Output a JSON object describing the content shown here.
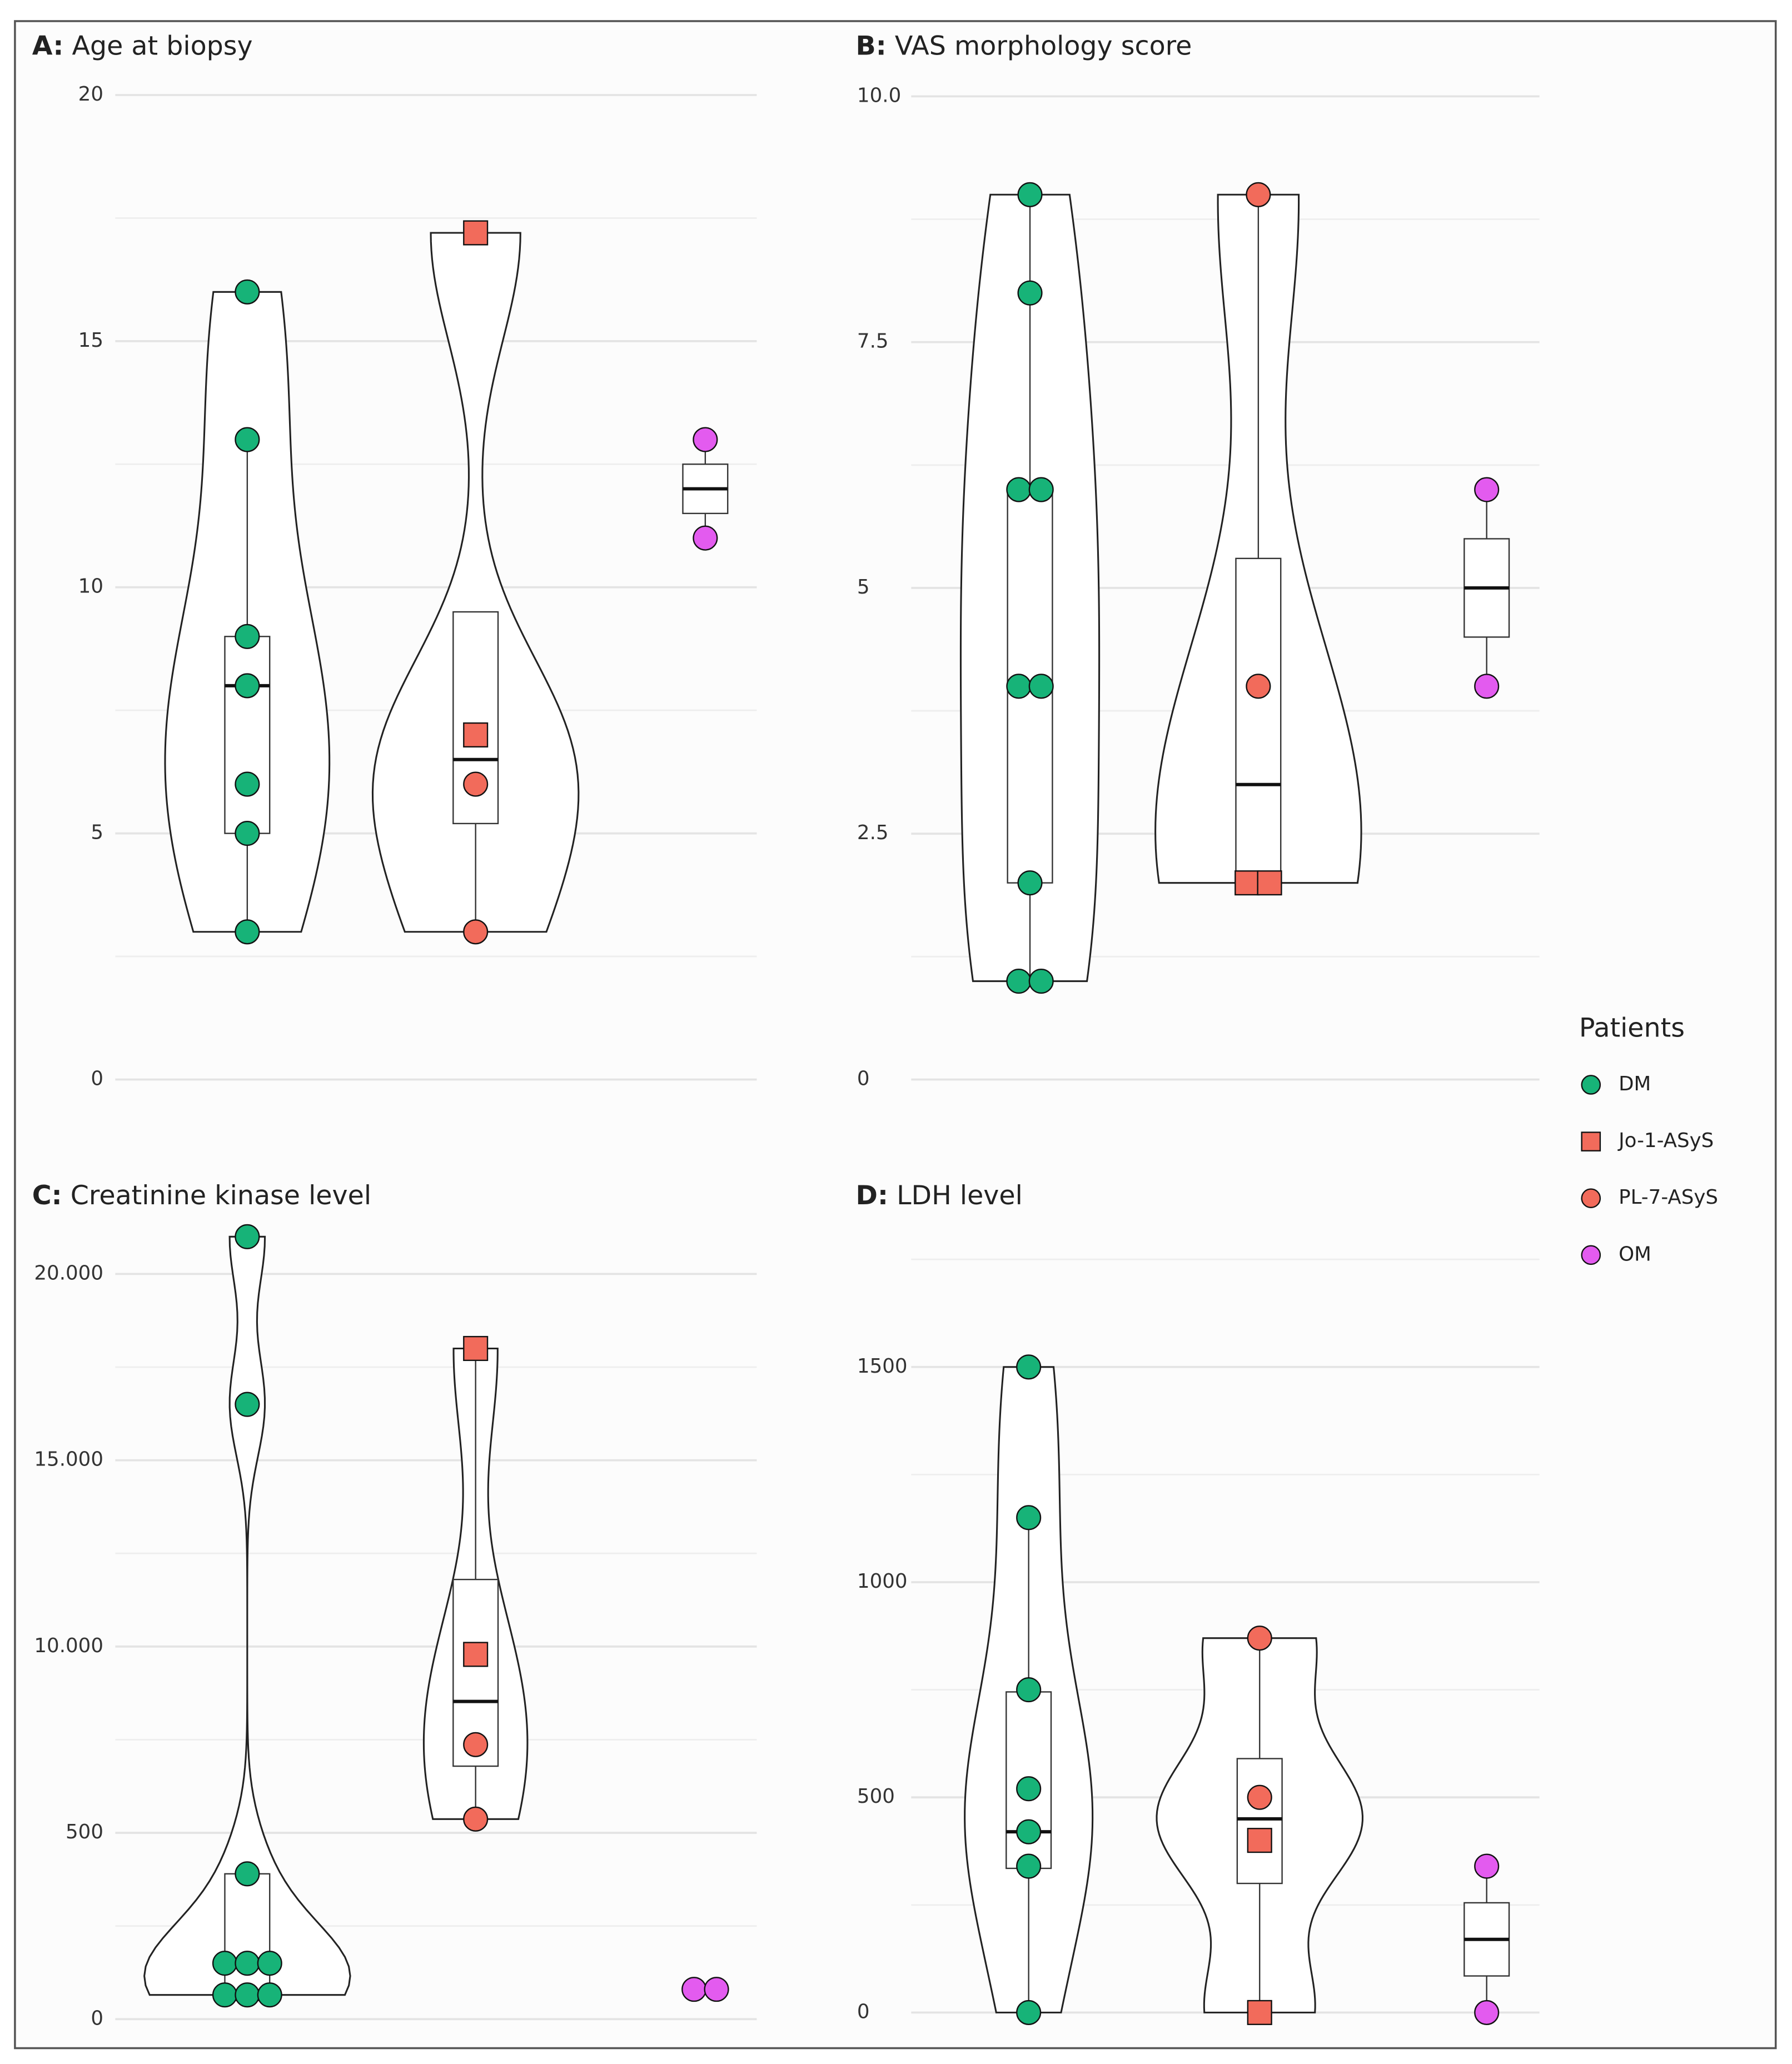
{
  "legend": {
    "title": "Patients",
    "entries": [
      {
        "name": "DM",
        "color": "#17b378",
        "shape": "circle"
      },
      {
        "name": "Jo-1-ASyS",
        "color": "#f26b5b",
        "shape": "square"
      },
      {
        "name": "PL-7-ASyS",
        "color": "#f26b5b",
        "shape": "circle"
      },
      {
        "name": "OM",
        "color": "#e35bef",
        "shape": "circle"
      }
    ]
  },
  "chart_data": [
    {
      "type": "violin",
      "label": "A:",
      "title": "Age at biopsy",
      "ylim": [
        0,
        20
      ],
      "yticks": [
        0,
        5,
        10,
        15,
        20
      ],
      "grid": true,
      "series": [
        {
          "values": [
            16,
            13,
            9,
            8,
            6,
            5,
            3
          ]
        },
        {
          "values": [
            17.2,
            7
          ]
        },
        {
          "values": [
            6,
            3
          ]
        },
        {
          "values": [
            13,
            11
          ]
        }
      ],
      "boxes": [
        {
          "whisker_low": 3,
          "q1": 5,
          "median": 8,
          "q3": 9,
          "whisker_high": 13
        },
        {
          "whisker_low": 3,
          "q1": 5.2,
          "median": 6.5,
          "q3": 9.5,
          "whisker_high": 9.5
        },
        {
          "whisker_low": 11,
          "q1": 11.5,
          "median": 12,
          "q3": 12.5,
          "whisker_high": 13
        }
      ]
    },
    {
      "type": "violin",
      "label": "B:",
      "title": "VAS morphology score",
      "ylim": [
        0,
        10
      ],
      "yticks": [
        0,
        2.5,
        5,
        7.5,
        {
          "value": 10,
          "label": "10.0"
        }
      ],
      "grid": true,
      "series": [
        {
          "values": [
            9,
            8,
            6,
            6,
            4,
            4,
            2,
            1,
            1
          ]
        },
        {
          "values": [
            2,
            2
          ]
        },
        {
          "values": [
            9,
            4
          ]
        },
        {
          "values": [
            6,
            4
          ]
        }
      ],
      "boxes": [
        {
          "whisker_low": 1,
          "q1": 2,
          "median": 4,
          "q3": 6,
          "whisker_high": 9
        },
        {
          "whisker_low": 2,
          "q1": 2,
          "median": 3,
          "q3": 5.3,
          "whisker_high": 9
        },
        {
          "whisker_low": 4,
          "q1": 4.5,
          "median": 5,
          "q3": 5.5,
          "whisker_high": 6
        }
      ]
    },
    {
      "type": "violin",
      "label": "C:",
      "title": "Creatinine kinase level",
      "yscale": "piecewise",
      "ylim": [
        0,
        21500
      ],
      "yticks": [
        0,
        500,
        {
          "value": 10000,
          "label": "10.000"
        },
        {
          "value": 15000,
          "label": "15.000"
        },
        {
          "value": 20000,
          "label": "20.000"
        }
      ],
      "grid": true,
      "series": [
        {
          "values": [
            21000,
            16500,
            390,
            150,
            150,
            150,
            65,
            65,
            65
          ]
        },
        {
          "values": [
            18000,
            9600
          ]
        },
        {
          "values": [
            5000,
            1200
          ]
        },
        {
          "values": [
            80,
            80
          ]
        }
      ],
      "boxes": [
        {
          "whisker_low": 50,
          "q1": 50,
          "median": 150,
          "q3": 390,
          "whisker_high": 390
        },
        {
          "whisker_low": 1200,
          "q1": 3900,
          "median": 7200,
          "q3": 11800,
          "whisker_high": 18000
        },
        {
          "whisker_low": 75,
          "q1": 75,
          "median": 80,
          "q3": 85,
          "whisker_high": 85
        }
      ]
    },
    {
      "type": "violin",
      "label": "D:",
      "title": "LDH level",
      "ylim": [
        0,
        1800
      ],
      "yticks": [
        0,
        500,
        1000,
        1500
      ],
      "grid": true,
      "series": [
        {
          "values": [
            1500,
            1150,
            750,
            520,
            420,
            340,
            0
          ]
        },
        {
          "values": [
            400,
            0
          ]
        },
        {
          "values": [
            870,
            500
          ]
        },
        {
          "values": [
            340,
            0
          ]
        }
      ],
      "boxes": [
        {
          "whisker_low": 0,
          "q1": 335,
          "median": 420,
          "q3": 745,
          "whisker_high": 1150
        },
        {
          "whisker_low": 0,
          "q1": 300,
          "median": 450,
          "q3": 590,
          "whisker_high": 870
        },
        {
          "whisker_low": 0,
          "q1": 85,
          "median": 170,
          "q3": 255,
          "whisker_high": 340
        }
      ]
    }
  ]
}
